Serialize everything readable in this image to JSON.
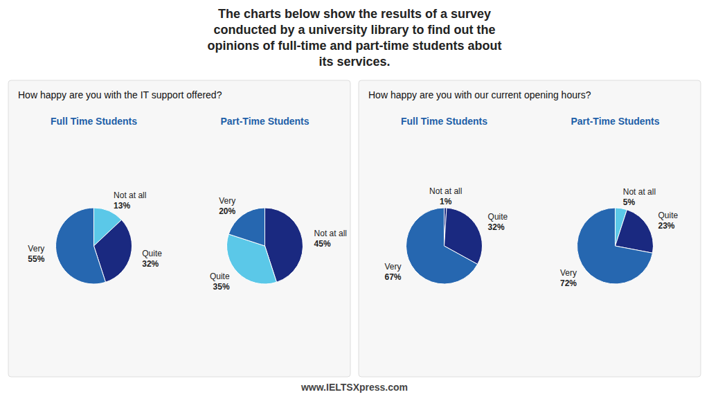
{
  "chart_data": [
    {
      "type": "pie",
      "title": "Full Time Students",
      "subtitle": "How happy are you with the IT support offered?",
      "annotations": [
        "The charts below show the results of a survey\nconducted by a university library to find out the\nopinions of full-time and part-time students about\nits services.",
        "www.IELTSXpress.com"
      ],
      "categories": [
        "Not at all",
        "Quite",
        "Very"
      ],
      "values": [
        13,
        32,
        55
      ],
      "value_labels": [
        "13%",
        "32%",
        "55%"
      ],
      "colors": [
        "#5bc8e8",
        "#1a2980",
        "#2667b0"
      ],
      "data_labels": true
    },
    {
      "type": "pie",
      "title": "Part-Time Students",
      "categories": [
        "Not at all",
        "Quite",
        "Very"
      ],
      "values": [
        45,
        35,
        20
      ],
      "value_labels": [
        "45%",
        "35%",
        "20%"
      ],
      "colors": [
        "#1a2980",
        "#5bc8e8",
        "#2667b0"
      ],
      "data_labels": true
    },
    {
      "type": "pie",
      "title": "Full Time Students",
      "subtitle": "How happy are you with our current opening hours?",
      "categories": [
        "Not at all",
        "Quite",
        "Very"
      ],
      "values": [
        1,
        32,
        67
      ],
      "value_labels": [
        "1%",
        "32%",
        "67%"
      ],
      "colors": [
        "#1a2980",
        "#1a2980",
        "#2667b0"
      ],
      "data_labels": true
    },
    {
      "type": "pie",
      "title": "Part-Time Students",
      "categories": [
        "Not at all",
        "Quite",
        "Very"
      ],
      "values": [
        5,
        23,
        72
      ],
      "value_labels": [
        "5%",
        "23%",
        "72%"
      ],
      "colors": [
        "#5bc8e8",
        "#1a2980",
        "#2667b0"
      ],
      "data_labels": true
    }
  ]
}
